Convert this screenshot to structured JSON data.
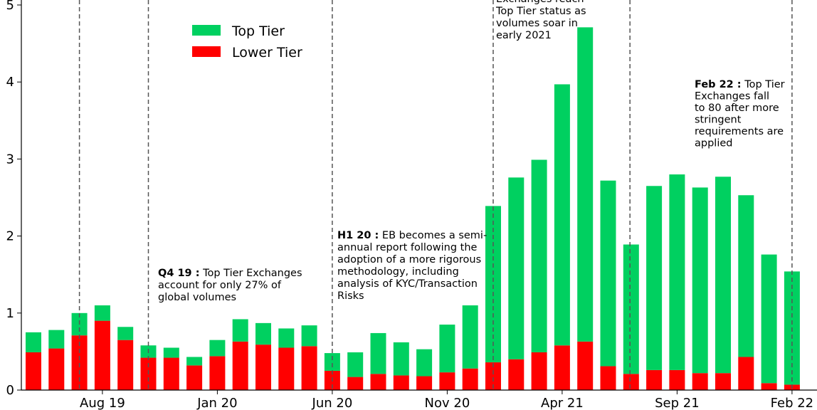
{
  "chart_data": {
    "type": "stacked_bar",
    "categories": [
      null,
      null,
      null,
      "Aug 19",
      null,
      null,
      null,
      null,
      "Jan 20",
      null,
      null,
      null,
      null,
      "Jun 20",
      null,
      null,
      null,
      null,
      "Nov 20",
      null,
      null,
      null,
      null,
      "Apr 21",
      null,
      null,
      null,
      null,
      "Sep 21",
      null,
      null,
      null,
      null,
      "Feb 22"
    ],
    "series": [
      {
        "name": "Top Tier",
        "color": "#00d060",
        "values": [
          0.26,
          0.24,
          0.29,
          0.2,
          0.17,
          0.16,
          0.13,
          0.11,
          0.21,
          0.29,
          0.28,
          0.25,
          0.27,
          0.23,
          0.32,
          0.53,
          0.43,
          0.35,
          0.62,
          0.82,
          2.03,
          2.36,
          2.5,
          3.39,
          4.08,
          2.41,
          1.68,
          2.39,
          2.54,
          2.41,
          2.55,
          2.1,
          1.67,
          1.47
        ]
      },
      {
        "name": "Lower Tier",
        "color": "#ff0000",
        "values": [
          0.49,
          0.54,
          0.71,
          0.9,
          0.65,
          0.42,
          0.42,
          0.32,
          0.44,
          0.63,
          0.59,
          0.55,
          0.57,
          0.25,
          0.17,
          0.21,
          0.19,
          0.18,
          0.23,
          0.28,
          0.36,
          0.4,
          0.49,
          0.58,
          0.63,
          0.31,
          0.21,
          0.26,
          0.26,
          0.22,
          0.22,
          0.43,
          0.09,
          0.07
        ]
      }
    ],
    "ylim": [
      0,
      5
    ],
    "yticks": [
      0,
      1,
      2,
      3,
      4,
      5
    ],
    "legend": "upper left",
    "annotations": [
      {
        "label": "Q4 19 :",
        "lines": [
          "Top Tier Exchanges",
          "account for only 27% of",
          "global volumes"
        ]
      },
      {
        "label": "H1 20 :",
        "lines": [
          "EB becomes a semi-",
          "annual report following the",
          "adoption of a more rigorous",
          "methodology, including",
          "analysis of KYC/Transaction",
          "Risks"
        ]
      },
      {
        "lines": [
          "Exchanges reach",
          "Top Tier status as",
          "volumes soar in",
          "early 2021"
        ]
      },
      {
        "label": "Feb 22 :",
        "lines": [
          "Top Tier",
          "Exchanges fall",
          "to 80 after more",
          "stringent",
          "requirements are",
          "applied"
        ]
      }
    ]
  }
}
